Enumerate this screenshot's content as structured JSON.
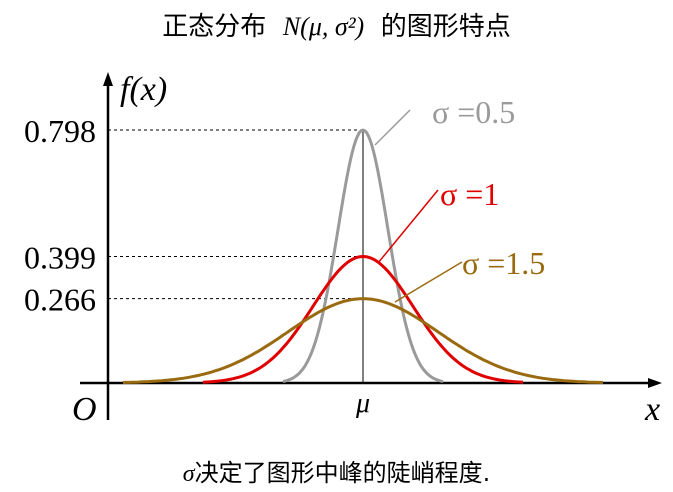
{
  "title": {
    "prefix": "正态分布",
    "notation": "N(μ, σ²)",
    "suffix": "的图形特点"
  },
  "caption": {
    "symbol": "σ",
    "text": "决定了图形中峰的陡峭程度."
  },
  "colors": {
    "axis": "#000000",
    "guide": "#000000",
    "sigma_0_5": "#9a9a9a",
    "sigma_1": "#e00000",
    "sigma_1_5": "#9a6a10"
  },
  "chart_data": {
    "type": "line",
    "ylabel": "f(x)",
    "xlabel": "x",
    "origin_label": "O",
    "mean_label": "μ",
    "y_ticks": [
      {
        "value": 0.798,
        "label": "0.798"
      },
      {
        "value": 0.399,
        "label": "0.399"
      },
      {
        "value": 0.266,
        "label": "0.266"
      }
    ],
    "series": [
      {
        "name": "σ =0.5",
        "sigma": 0.5,
        "x_range": [
          -1.6,
          1.6
        ],
        "peak": 0.798
      },
      {
        "name": "σ =1",
        "sigma": 1,
        "x_range": [
          -3.2,
          3.2
        ],
        "peak": 0.399
      },
      {
        "name": "σ =1.5",
        "sigma": 1.5,
        "x_range": [
          -4.8,
          4.8
        ],
        "peak": 0.266
      }
    ]
  }
}
